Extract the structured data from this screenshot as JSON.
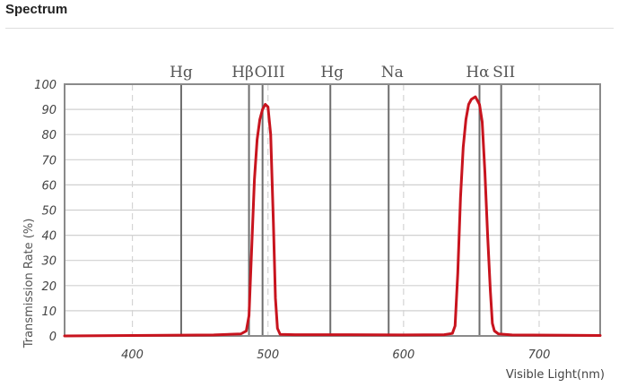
{
  "header": {
    "title": "Spectrum"
  },
  "colors": {
    "curve": "#c8141e",
    "frame": "#8a8a8a",
    "hgrid": "#d0d0d0",
    "vgrid_dashed": "#d4d4d4",
    "emission_line": "#6e6e6e"
  },
  "chart_data": {
    "type": "line",
    "title": "",
    "xlabel": "Visible Light(nm)",
    "ylabel": "Transmission Rate (%)",
    "xlim": [
      350,
      745
    ],
    "ylim": [
      0,
      100
    ],
    "x_ticks": [
      400,
      500,
      600,
      700
    ],
    "x_tick_labels": [
      "400",
      "500",
      "600",
      "700"
    ],
    "y_ticks": [
      0,
      10,
      20,
      30,
      40,
      50,
      60,
      70,
      80,
      90,
      100
    ],
    "y_tick_labels": [
      "0",
      "10",
      "20",
      "30",
      "40",
      "50",
      "60",
      "70",
      "80",
      "90",
      "100"
    ],
    "grid": "horizontal solid, vertical dashed",
    "emission_lines": [
      {
        "label": "Hg",
        "nm": 436
      },
      {
        "label": "Hβ",
        "nm": 486
      },
      {
        "label": "OIII",
        "nm": 496
      },
      {
        "label": "Hg",
        "nm": 546
      },
      {
        "label": "Na",
        "nm": 589
      },
      {
        "label": "Hα",
        "nm": 656
      },
      {
        "label": "SII",
        "nm": 672
      }
    ],
    "series": [
      {
        "values": [
          [
            350,
            0
          ],
          [
            400,
            0.2
          ],
          [
            460,
            0.4
          ],
          [
            480,
            0.8
          ],
          [
            484,
            2
          ],
          [
            486,
            8
          ],
          [
            488,
            35
          ],
          [
            490,
            62
          ],
          [
            492,
            78
          ],
          [
            494,
            86
          ],
          [
            496,
            90
          ],
          [
            498,
            92
          ],
          [
            500,
            91
          ],
          [
            502,
            80
          ],
          [
            504,
            45
          ],
          [
            505.5,
            15
          ],
          [
            507,
            3
          ],
          [
            509,
            0.6
          ],
          [
            520,
            0.5
          ],
          [
            560,
            0.5
          ],
          [
            600,
            0.4
          ],
          [
            630,
            0.5
          ],
          [
            636,
            1
          ],
          [
            638,
            4
          ],
          [
            640,
            25
          ],
          [
            642,
            55
          ],
          [
            644,
            75
          ],
          [
            646,
            86
          ],
          [
            648,
            92
          ],
          [
            650,
            94
          ],
          [
            653,
            95
          ],
          [
            656,
            92
          ],
          [
            658,
            85
          ],
          [
            660,
            65
          ],
          [
            662,
            40
          ],
          [
            664,
            18
          ],
          [
            665.5,
            5
          ],
          [
            667,
            2
          ],
          [
            670,
            0.8
          ],
          [
            680,
            0.4
          ],
          [
            745,
            0.2
          ]
        ]
      }
    ]
  }
}
